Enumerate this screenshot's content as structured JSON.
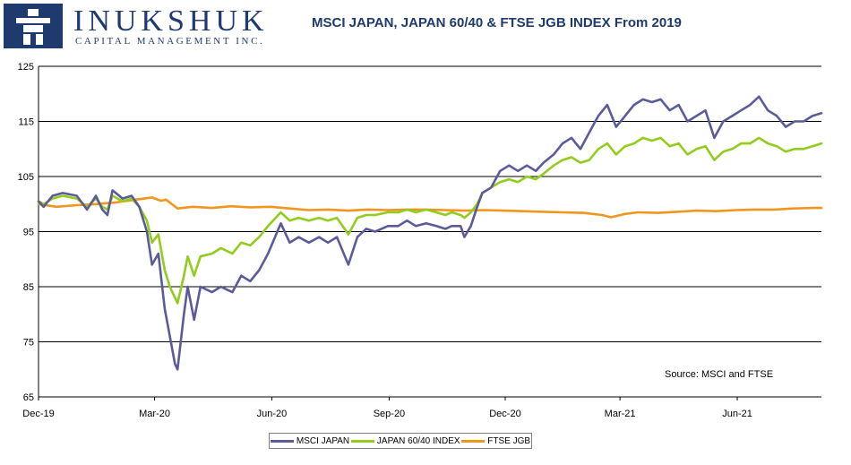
{
  "logo": {
    "name": "INUKSHUK",
    "subtitle": "CAPITAL MANAGEMENT INC.",
    "brand_color": "#1f3a6e"
  },
  "colors": {
    "msci_japan": "#5b5b9a",
    "japan_6040": "#92cc1c",
    "ftse_jgb": "#f0961e",
    "grid": "#000000"
  },
  "chart_data": {
    "type": "line",
    "title": "MSCI JAPAN, JAPAN 60/40 & FTSE JGB INDEX From 2019",
    "annotation": "Source: MSCI and FTSE",
    "xlabel": "",
    "ylabel": "",
    "x_tick_labels": [
      "Dec-19",
      "Mar-20",
      "Jun-20",
      "Sep-20",
      "Dec-20",
      "Mar-21",
      "Jun-21"
    ],
    "y_ticks": [
      65,
      75,
      85,
      95,
      105,
      115,
      125
    ],
    "ylim": [
      65,
      125
    ],
    "xlim": [
      "2019-12-01",
      "2021-08-06"
    ],
    "grid": "horizontal",
    "legend_position": "bottom",
    "series": [
      {
        "name": "MSCI JAPAN",
        "points": [
          [
            "2019-12-01",
            100.5
          ],
          [
            "2019-12-05",
            99.5
          ],
          [
            "2019-12-12",
            101.5
          ],
          [
            "2019-12-20",
            102
          ],
          [
            "2019-12-31",
            101.5
          ],
          [
            "2020-01-08",
            99
          ],
          [
            "2020-01-15",
            101.5
          ],
          [
            "2020-01-20",
            99
          ],
          [
            "2020-01-24",
            98
          ],
          [
            "2020-01-28",
            102.5
          ],
          [
            "2020-02-05",
            101
          ],
          [
            "2020-02-12",
            101.5
          ],
          [
            "2020-02-18",
            99.5
          ],
          [
            "2020-02-24",
            95
          ],
          [
            "2020-02-28",
            89
          ],
          [
            "2020-03-04",
            91
          ],
          [
            "2020-03-09",
            81
          ],
          [
            "2020-03-13",
            76
          ],
          [
            "2020-03-17",
            71
          ],
          [
            "2020-03-19",
            70
          ],
          [
            "2020-03-24",
            80
          ],
          [
            "2020-03-27",
            85
          ],
          [
            "2020-04-01",
            79
          ],
          [
            "2020-04-06",
            85
          ],
          [
            "2020-04-15",
            84
          ],
          [
            "2020-04-22",
            85
          ],
          [
            "2020-05-01",
            84
          ],
          [
            "2020-05-08",
            87
          ],
          [
            "2020-05-15",
            86
          ],
          [
            "2020-05-22",
            88
          ],
          [
            "2020-05-29",
            91
          ],
          [
            "2020-06-08",
            96.5
          ],
          [
            "2020-06-15",
            93
          ],
          [
            "2020-06-22",
            94
          ],
          [
            "2020-06-30",
            93
          ],
          [
            "2020-07-08",
            94
          ],
          [
            "2020-07-15",
            93
          ],
          [
            "2020-07-22",
            94
          ],
          [
            "2020-07-31",
            89
          ],
          [
            "2020-08-07",
            94
          ],
          [
            "2020-08-14",
            95.5
          ],
          [
            "2020-08-21",
            95
          ],
          [
            "2020-08-31",
            96
          ],
          [
            "2020-09-08",
            96
          ],
          [
            "2020-09-15",
            97
          ],
          [
            "2020-09-22",
            96
          ],
          [
            "2020-09-30",
            96.5
          ],
          [
            "2020-10-08",
            96
          ],
          [
            "2020-10-15",
            95.5
          ],
          [
            "2020-10-20",
            96
          ],
          [
            "2020-10-27",
            96
          ],
          [
            "2020-10-30",
            94
          ],
          [
            "2020-11-04",
            96
          ],
          [
            "2020-11-09",
            99.5
          ],
          [
            "2020-11-13",
            102
          ],
          [
            "2020-11-20",
            103
          ],
          [
            "2020-11-27",
            106
          ],
          [
            "2020-12-04",
            107
          ],
          [
            "2020-12-11",
            106
          ],
          [
            "2020-12-18",
            107
          ],
          [
            "2020-12-25",
            106
          ],
          [
            "2020-12-31",
            107.5
          ],
          [
            "2021-01-08",
            109
          ],
          [
            "2021-01-15",
            111
          ],
          [
            "2021-01-22",
            112
          ],
          [
            "2021-01-29",
            110
          ],
          [
            "2021-02-05",
            113
          ],
          [
            "2021-02-12",
            116
          ],
          [
            "2021-02-19",
            118
          ],
          [
            "2021-02-26",
            114
          ],
          [
            "2021-03-05",
            116
          ],
          [
            "2021-03-12",
            118
          ],
          [
            "2021-03-19",
            119
          ],
          [
            "2021-03-26",
            118.5
          ],
          [
            "2021-04-02",
            119
          ],
          [
            "2021-04-09",
            117
          ],
          [
            "2021-04-16",
            118
          ],
          [
            "2021-04-23",
            115
          ],
          [
            "2021-04-30",
            116
          ],
          [
            "2021-05-07",
            117
          ],
          [
            "2021-05-14",
            112
          ],
          [
            "2021-05-21",
            115
          ],
          [
            "2021-05-28",
            116
          ],
          [
            "2021-06-04",
            117
          ],
          [
            "2021-06-11",
            118
          ],
          [
            "2021-06-18",
            119.5
          ],
          [
            "2021-06-25",
            117
          ],
          [
            "2021-07-02",
            116
          ],
          [
            "2021-07-09",
            114
          ],
          [
            "2021-07-16",
            115
          ],
          [
            "2021-07-23",
            115
          ],
          [
            "2021-07-30",
            116
          ],
          [
            "2021-08-06",
            116.5
          ]
        ]
      },
      {
        "name": "JAPAN 60/40 INDEX",
        "points": [
          [
            "2019-12-01",
            100.5
          ],
          [
            "2019-12-05",
            100
          ],
          [
            "2019-12-12",
            101
          ],
          [
            "2019-12-20",
            101.5
          ],
          [
            "2019-12-31",
            101
          ],
          [
            "2020-01-08",
            99.5
          ],
          [
            "2020-01-15",
            101
          ],
          [
            "2020-01-20",
            99.5
          ],
          [
            "2020-01-24",
            99
          ],
          [
            "2020-01-28",
            101.5
          ],
          [
            "2020-02-05",
            100.5
          ],
          [
            "2020-02-12",
            101
          ],
          [
            "2020-02-18",
            99.5
          ],
          [
            "2020-02-24",
            97
          ],
          [
            "2020-02-28",
            93
          ],
          [
            "2020-03-04",
            94.5
          ],
          [
            "2020-03-09",
            88
          ],
          [
            "2020-03-13",
            85
          ],
          [
            "2020-03-17",
            83
          ],
          [
            "2020-03-19",
            82
          ],
          [
            "2020-03-24",
            87
          ],
          [
            "2020-03-27",
            90.5
          ],
          [
            "2020-04-01",
            87
          ],
          [
            "2020-04-06",
            90.5
          ],
          [
            "2020-04-15",
            91
          ],
          [
            "2020-04-22",
            92
          ],
          [
            "2020-05-01",
            91
          ],
          [
            "2020-05-08",
            93
          ],
          [
            "2020-05-15",
            92.5
          ],
          [
            "2020-05-22",
            94
          ],
          [
            "2020-05-29",
            96
          ],
          [
            "2020-06-08",
            98.5
          ],
          [
            "2020-06-15",
            97
          ],
          [
            "2020-06-22",
            97.5
          ],
          [
            "2020-06-30",
            97
          ],
          [
            "2020-07-08",
            97.5
          ],
          [
            "2020-07-15",
            97
          ],
          [
            "2020-07-22",
            97.5
          ],
          [
            "2020-07-31",
            94.5
          ],
          [
            "2020-08-07",
            97.5
          ],
          [
            "2020-08-14",
            98
          ],
          [
            "2020-08-21",
            98
          ],
          [
            "2020-08-31",
            98.5
          ],
          [
            "2020-09-08",
            98.5
          ],
          [
            "2020-09-15",
            99
          ],
          [
            "2020-09-22",
            98.5
          ],
          [
            "2020-09-30",
            99
          ],
          [
            "2020-10-08",
            98.5
          ],
          [
            "2020-10-15",
            98
          ],
          [
            "2020-10-20",
            98.5
          ],
          [
            "2020-10-27",
            98
          ],
          [
            "2020-10-30",
            97.5
          ],
          [
            "2020-11-04",
            98.5
          ],
          [
            "2020-11-09",
            100
          ],
          [
            "2020-11-13",
            102
          ],
          [
            "2020-11-20",
            103
          ],
          [
            "2020-11-27",
            104
          ],
          [
            "2020-12-04",
            104.5
          ],
          [
            "2020-12-11",
            104
          ],
          [
            "2020-12-18",
            105
          ],
          [
            "2020-12-25",
            104.5
          ],
          [
            "2020-12-31",
            105.5
          ],
          [
            "2021-01-08",
            107
          ],
          [
            "2021-01-15",
            108
          ],
          [
            "2021-01-22",
            108.5
          ],
          [
            "2021-01-29",
            107.5
          ],
          [
            "2021-02-05",
            108
          ],
          [
            "2021-02-12",
            110
          ],
          [
            "2021-02-19",
            111
          ],
          [
            "2021-02-26",
            109
          ],
          [
            "2021-03-05",
            110.5
          ],
          [
            "2021-03-12",
            111
          ],
          [
            "2021-03-19",
            112
          ],
          [
            "2021-03-26",
            111.5
          ],
          [
            "2021-04-02",
            112
          ],
          [
            "2021-04-09",
            110.5
          ],
          [
            "2021-04-16",
            111
          ],
          [
            "2021-04-23",
            109
          ],
          [
            "2021-04-30",
            110
          ],
          [
            "2021-05-07",
            110.5
          ],
          [
            "2021-05-14",
            108
          ],
          [
            "2021-05-21",
            109.5
          ],
          [
            "2021-05-28",
            110
          ],
          [
            "2021-06-04",
            111
          ],
          [
            "2021-06-11",
            111
          ],
          [
            "2021-06-18",
            112
          ],
          [
            "2021-06-25",
            111
          ],
          [
            "2021-07-02",
            110.5
          ],
          [
            "2021-07-09",
            109.5
          ],
          [
            "2021-07-16",
            110
          ],
          [
            "2021-07-23",
            110
          ],
          [
            "2021-07-30",
            110.5
          ],
          [
            "2021-08-06",
            111
          ]
        ]
      },
      {
        "name": "FTSE JGB",
        "points": [
          [
            "2019-12-01",
            100
          ],
          [
            "2019-12-15",
            99.5
          ],
          [
            "2019-12-31",
            99.8
          ],
          [
            "2020-01-15",
            100
          ],
          [
            "2020-01-31",
            100.3
          ],
          [
            "2020-02-15",
            100.8
          ],
          [
            "2020-02-28",
            101.2
          ],
          [
            "2020-03-06",
            100.6
          ],
          [
            "2020-03-10",
            100.8
          ],
          [
            "2020-03-19",
            99.2
          ],
          [
            "2020-03-31",
            99.5
          ],
          [
            "2020-04-15",
            99.3
          ],
          [
            "2020-04-30",
            99.6
          ],
          [
            "2020-05-15",
            99.4
          ],
          [
            "2020-05-31",
            99.5
          ],
          [
            "2020-06-15",
            99.2
          ],
          [
            "2020-06-30",
            98.9
          ],
          [
            "2020-07-15",
            99
          ],
          [
            "2020-07-31",
            98.8
          ],
          [
            "2020-08-15",
            99
          ],
          [
            "2020-08-31",
            98.9
          ],
          [
            "2020-09-15",
            99
          ],
          [
            "2020-09-30",
            99
          ],
          [
            "2020-10-15",
            98.9
          ],
          [
            "2020-10-31",
            98.8
          ],
          [
            "2020-11-15",
            98.9
          ],
          [
            "2020-11-30",
            98.8
          ],
          [
            "2020-12-15",
            98.7
          ],
          [
            "2020-12-31",
            98.6
          ],
          [
            "2021-01-15",
            98.5
          ],
          [
            "2021-01-31",
            98.4
          ],
          [
            "2021-02-15",
            98
          ],
          [
            "2021-02-22",
            97.6
          ],
          [
            "2021-03-05",
            98.2
          ],
          [
            "2021-03-15",
            98.5
          ],
          [
            "2021-03-31",
            98.4
          ],
          [
            "2021-04-15",
            98.6
          ],
          [
            "2021-04-30",
            98.8
          ],
          [
            "2021-05-15",
            98.7
          ],
          [
            "2021-05-31",
            98.9
          ],
          [
            "2021-06-15",
            99
          ],
          [
            "2021-06-30",
            99
          ],
          [
            "2021-07-15",
            99.2
          ],
          [
            "2021-07-31",
            99.3
          ],
          [
            "2021-08-06",
            99.3
          ]
        ]
      }
    ]
  }
}
